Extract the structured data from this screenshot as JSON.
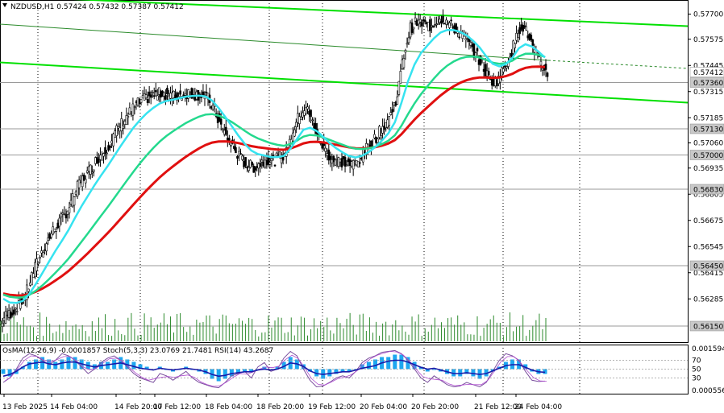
{
  "header": {
    "symbol": "NZDUSD,H1",
    "ohlc": "0.57424 0.57432 0.57387 0.57412"
  },
  "indicator_header": {
    "osma": "OsMA(12,26,9) -0.0001857",
    "stoch": "Stoch(5,3,3) 23.0769 21.7481",
    "rsi": "RSI(14) 43.2687"
  },
  "colors": {
    "candle": "#000000",
    "volume": "#2e8b2e",
    "ema_fast": "#36e3f0",
    "ema_mid": "#24d98e",
    "ema_slow": "#e01010",
    "channel": "#00e000",
    "level_line": "#9a9a9a",
    "osma_hist": "#1ea7f0",
    "rsi_line": "#1a1aa8",
    "stoch_main": "#7a4f9e",
    "stoch_signal": "#b04fd0"
  },
  "chart_data": {
    "type": "candlestick",
    "symbol": "NZDUSD",
    "timeframe": "H1",
    "ylim": [
      0.5607,
      0.5777
    ],
    "price_ticks": [
      "0.57700",
      "0.57575",
      "0.57445",
      "0.57315",
      "0.57185",
      "0.57060",
      "0.56935",
      "0.56805",
      "0.56675",
      "0.56545",
      "0.56415",
      "0.56285"
    ],
    "level_tags": [
      {
        "value": 0.57412,
        "label": "0.57412",
        "style": "current"
      },
      {
        "value": 0.5736,
        "label": "0.57360",
        "style": "level"
      },
      {
        "value": 0.5713,
        "label": "0.57130",
        "style": "level"
      },
      {
        "value": 0.57,
        "label": "0.57000",
        "style": "level"
      },
      {
        "value": 0.5683,
        "label": "0.56830",
        "style": "level"
      },
      {
        "value": 0.5645,
        "label": "0.56450",
        "style": "level"
      },
      {
        "value": 0.5615,
        "label": "0.56150",
        "style": "level"
      }
    ],
    "time_labels": [
      "13 Feb 2025",
      "14 Feb 04:00",
      "14 Feb 20:00",
      "17 Feb 12:00",
      "18 Feb 04:00",
      "18 Feb 20:00",
      "19 Feb 12:00",
      "20 Feb 04:00",
      "20 Feb 20:00",
      "21 Feb 12:00",
      "24 Feb 04:00"
    ],
    "close_series": [
      0.562,
      0.5622,
      0.5626,
      0.563,
      0.564,
      0.5648,
      0.5655,
      0.5661,
      0.5666,
      0.567,
      0.5676,
      0.5684,
      0.5689,
      0.5693,
      0.5698,
      0.5702,
      0.5706,
      0.5712,
      0.5717,
      0.5721,
      0.5725,
      0.5727,
      0.5729,
      0.573,
      0.5731,
      0.573,
      0.5729,
      0.573,
      0.5731,
      0.573,
      0.573,
      0.5728,
      0.5722,
      0.5714,
      0.5708,
      0.5703,
      0.5698,
      0.5695,
      0.5694,
      0.5696,
      0.5698,
      0.5697,
      0.5699,
      0.5701,
      0.5712,
      0.572,
      0.5724,
      0.5716,
      0.5708,
      0.5702,
      0.5698,
      0.5697,
      0.5696,
      0.5695,
      0.5697,
      0.5702,
      0.5706,
      0.571,
      0.5715,
      0.572,
      0.573,
      0.575,
      0.5763,
      0.5766,
      0.5765,
      0.5764,
      0.5767,
      0.5768,
      0.5765,
      0.5762,
      0.5759,
      0.5755,
      0.575,
      0.5745,
      0.5738,
      0.5736,
      0.5741,
      0.5748,
      0.5756,
      0.5765,
      0.576,
      0.5751,
      0.5745,
      0.5741
    ]
  },
  "indicator_data": {
    "osma_scale": [
      "0.0015948",
      "0.000556"
    ],
    "oscillator_levels": [
      "70",
      "50",
      "30"
    ],
    "osma_hist": [
      -2,
      -3,
      -2,
      1,
      3,
      4,
      5,
      4,
      3,
      4,
      5,
      5,
      4,
      3,
      2,
      3,
      3,
      4,
      5,
      4,
      3,
      2,
      1,
      0,
      1,
      0,
      -1,
      0,
      1,
      0,
      -1,
      -2,
      -4,
      -5,
      -4,
      -3,
      -2,
      -1,
      -1,
      0,
      1,
      0,
      1,
      3,
      5,
      4,
      2,
      -1,
      -3,
      -4,
      -3,
      -2,
      -1,
      -1,
      0,
      2,
      3,
      4,
      5,
      5,
      6,
      6,
      5,
      3,
      1,
      -1,
      0,
      -1,
      -2,
      -3,
      -3,
      -2,
      -3,
      -4,
      -3,
      -1,
      1,
      3,
      4,
      4,
      2,
      -1,
      -2,
      -2
    ],
    "rsi": [
      34,
      38,
      45,
      55,
      62,
      64,
      66,
      62,
      60,
      64,
      66,
      66,
      62,
      58,
      55,
      58,
      60,
      62,
      64,
      60,
      56,
      52,
      50,
      48,
      52,
      50,
      48,
      50,
      52,
      50,
      48,
      44,
      38,
      34,
      36,
      40,
      42,
      44,
      44,
      48,
      50,
      48,
      50,
      56,
      64,
      62,
      56,
      46,
      40,
      38,
      40,
      42,
      44,
      44,
      48,
      52,
      55,
      58,
      64,
      68,
      70,
      70,
      66,
      60,
      54,
      50,
      52,
      48,
      44,
      40,
      40,
      42,
      40,
      38,
      40,
      46,
      52,
      58,
      60,
      60,
      54,
      48,
      44,
      43
    ],
    "stoch": [
      20,
      30,
      50,
      75,
      85,
      80,
      70,
      60,
      70,
      85,
      80,
      70,
      55,
      40,
      50,
      65,
      75,
      80,
      70,
      55,
      40,
      30,
      25,
      20,
      40,
      35,
      25,
      35,
      45,
      30,
      20,
      15,
      10,
      8,
      20,
      35,
      40,
      45,
      30,
      55,
      65,
      45,
      50,
      75,
      90,
      80,
      50,
      25,
      10,
      12,
      20,
      30,
      35,
      30,
      45,
      65,
      75,
      80,
      88,
      90,
      92,
      85,
      70,
      50,
      30,
      20,
      35,
      25,
      15,
      10,
      12,
      20,
      15,
      10,
      20,
      45,
      70,
      85,
      80,
      70,
      45,
      25,
      22,
      23
    ]
  }
}
